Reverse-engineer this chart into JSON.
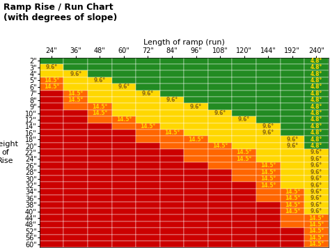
{
  "title": "Ramp Rise / Run Chart\n(with degrees of slope)",
  "xlabel": "Length of ramp (run)",
  "ylabel": "Height\nof\nRise",
  "col_labels": [
    "24\"",
    "36\"",
    "48\"",
    "60\"",
    "72\"",
    "84\"",
    "96\"",
    "108\"",
    "120\"",
    "144\"",
    "192\"",
    "240\""
  ],
  "row_labels": [
    "2\"",
    "3\"",
    "4\"",
    "5\"",
    "6\"",
    "7\"",
    "8\"",
    "9\"",
    "10\"",
    "12\"",
    "14\"",
    "16\"",
    "18\"",
    "20\"",
    "22\"",
    "24\"",
    "26\"",
    "28\"",
    "30\"",
    "32\"",
    "34\"",
    "36\"",
    "38\"",
    "40\"",
    "44\"",
    "48\"",
    "52\"",
    "56\"",
    "60\""
  ],
  "col_runs": [
    24,
    36,
    48,
    60,
    72,
    84,
    96,
    108,
    120,
    144,
    192,
    240
  ],
  "row_rises": [
    2,
    3,
    4,
    5,
    6,
    7,
    8,
    9,
    10,
    12,
    14,
    16,
    18,
    20,
    22,
    24,
    26,
    28,
    30,
    32,
    34,
    36,
    38,
    40,
    44,
    48,
    52,
    56,
    60
  ],
  "color_green": "#228B22",
  "color_yellow": "#FFD700",
  "color_orange": "#FF6600",
  "color_red": "#CC0000",
  "text_color_on_green": "#FFD700",
  "text_color_on_yellow": "#8B6914",
  "text_color_on_orange": "#FFD700",
  "text_color_on_red": "#FFD700",
  "bg_color": "#ffffff",
  "title_fontsize": 9,
  "label_fontsize": 7,
  "cell_fontsize": 5.5,
  "thresh_green": 4.8,
  "thresh_yellow": 9.6,
  "thresh_orange": 14.5
}
